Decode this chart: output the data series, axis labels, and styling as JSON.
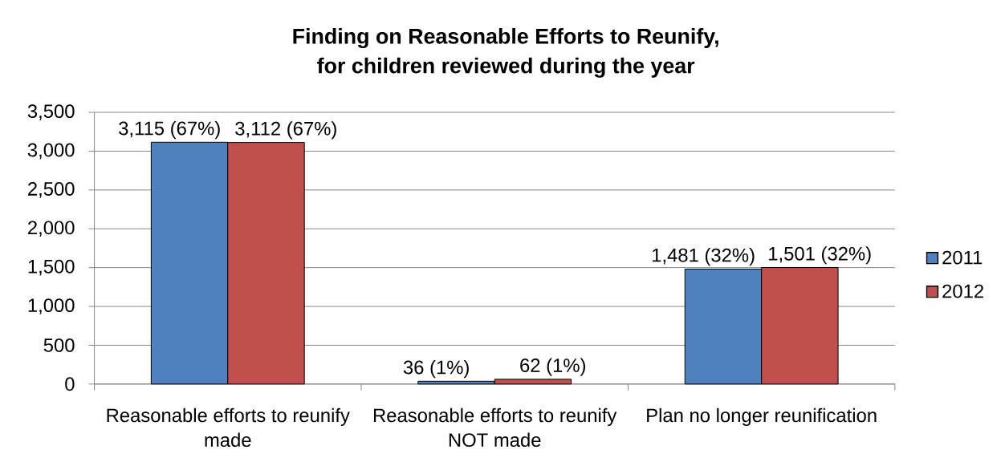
{
  "chart_data": {
    "type": "bar",
    "title": "Finding on Reasonable Efforts to Reunify, for children reviewed during the year",
    "categories": [
      "Reasonable efforts to reunify made",
      "Reasonable efforts to reunify NOT made",
      "Plan no longer reunification"
    ],
    "series": [
      {
        "name": "2011",
        "color": "#4f81bd",
        "values": [
          3115,
          36,
          1481
        ],
        "value_labels": [
          "3,115 (67%)",
          "36 (1%)",
          "1,481 (32%)"
        ]
      },
      {
        "name": "2012",
        "color": "#c0504d",
        "values": [
          3112,
          62,
          1501
        ],
        "value_labels": [
          "3,112 (67%)",
          "62 (1%)",
          "1,501 (32%)"
        ]
      }
    ],
    "ylim": [
      0,
      3500
    ],
    "yticks": [
      0,
      500,
      {
        "value": 1000,
        "label": "1,000"
      },
      {
        "value": 1500,
        "label": "1,500"
      },
      {
        "value": 2000,
        "label": "2,000"
      },
      {
        "value": 2500,
        "label": "2,500"
      },
      {
        "value": 3000,
        "label": "3,000"
      },
      {
        "value": 3500,
        "label": "3,500"
      }
    ],
    "grid": "y",
    "legend": "right"
  }
}
